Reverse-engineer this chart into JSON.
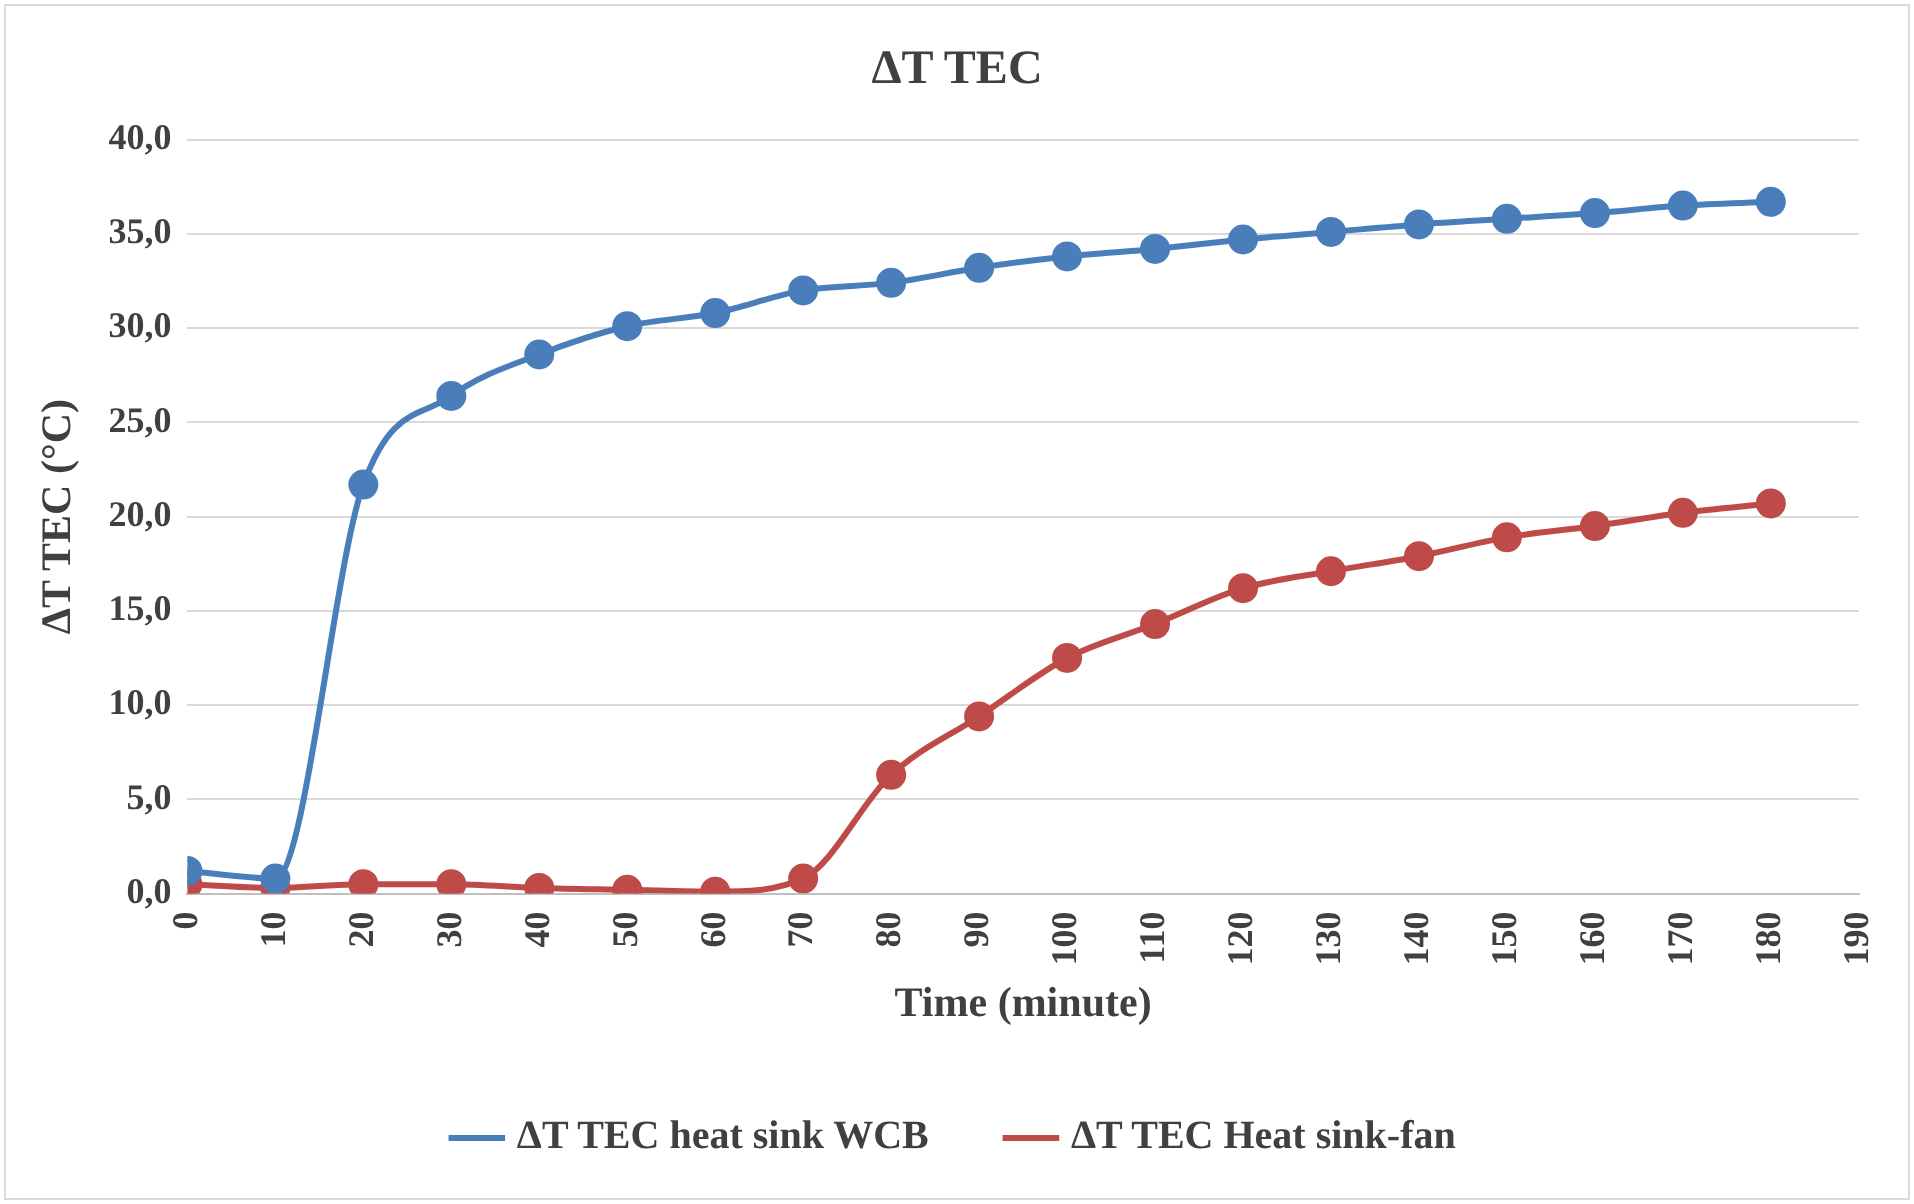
{
  "chart_data": {
    "type": "line",
    "title": "ΔT TEC",
    "xlabel": "Time (minute)",
    "ylabel": "ΔT TEC (°C)",
    "x": [
      0,
      10,
      20,
      30,
      40,
      50,
      60,
      70,
      80,
      90,
      100,
      110,
      120,
      130,
      140,
      150,
      160,
      170,
      180
    ],
    "series": [
      {
        "name": "ΔT TEC heat sink WCB",
        "color": "#4a7ebb",
        "values": [
          1.2,
          0.8,
          21.7,
          26.4,
          28.6,
          30.1,
          30.8,
          32.0,
          32.4,
          33.2,
          33.8,
          34.2,
          34.7,
          35.1,
          35.5,
          35.8,
          36.1,
          36.5,
          36.7
        ]
      },
      {
        "name": "ΔT TEC Heat sink-fan",
        "color": "#be4b48",
        "values": [
          0.5,
          0.3,
          0.5,
          0.5,
          0.3,
          0.2,
          0.1,
          0.8,
          6.3,
          9.4,
          12.5,
          14.3,
          16.2,
          17.1,
          17.9,
          18.9,
          19.5,
          20.2,
          20.7
        ]
      }
    ],
    "xlim": [
      0,
      190
    ],
    "xticks": [
      0,
      10,
      20,
      30,
      40,
      50,
      60,
      70,
      80,
      90,
      100,
      110,
      120,
      130,
      140,
      150,
      160,
      170,
      180,
      190
    ],
    "ylim": [
      0,
      40
    ],
    "yticks": [
      {
        "value": 0,
        "label": "0,0"
      },
      {
        "value": 5,
        "label": "5,0"
      },
      {
        "value": 10,
        "label": "10,0"
      },
      {
        "value": 15,
        "label": "15,0"
      },
      {
        "value": 20,
        "label": "20,0"
      },
      {
        "value": 25,
        "label": "25,0"
      },
      {
        "value": 30,
        "label": "30,0"
      },
      {
        "value": 35,
        "label": "35,0"
      },
      {
        "value": 40,
        "label": "40,0"
      }
    ],
    "grid": "y",
    "legend": "bottom",
    "marker": "circle",
    "line_style": "solid"
  }
}
